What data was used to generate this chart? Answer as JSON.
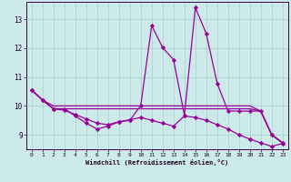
{
  "xlabel": "Windchill (Refroidissement éolien,°C)",
  "x": [
    0,
    1,
    2,
    3,
    4,
    5,
    6,
    7,
    8,
    9,
    10,
    11,
    12,
    13,
    14,
    15,
    16,
    17,
    18,
    19,
    20,
    21,
    22,
    23
  ],
  "lines": [
    [
      10.55,
      10.2,
      9.9,
      9.9,
      9.65,
      9.4,
      9.2,
      9.3,
      9.45,
      9.5,
      10.02,
      12.78,
      12.02,
      11.6,
      9.68,
      13.4,
      12.5,
      10.78,
      9.82,
      9.82,
      9.82,
      9.82,
      9.0,
      8.72
    ],
    [
      10.55,
      10.2,
      10.0,
      10.0,
      10.0,
      10.0,
      10.0,
      10.0,
      10.0,
      10.0,
      10.0,
      10.0,
      10.0,
      10.0,
      10.0,
      10.0,
      10.0,
      10.0,
      10.0,
      10.0,
      10.0,
      9.82,
      9.0,
      8.72
    ],
    [
      10.55,
      10.2,
      9.9,
      9.9,
      9.9,
      9.9,
      9.9,
      9.9,
      9.9,
      9.9,
      9.9,
      9.9,
      9.9,
      9.9,
      9.9,
      9.9,
      9.9,
      9.9,
      9.9,
      9.9,
      9.9,
      9.82,
      9.0,
      8.72
    ],
    [
      10.55,
      10.2,
      9.9,
      9.85,
      9.7,
      9.55,
      9.4,
      9.35,
      9.45,
      9.52,
      9.6,
      9.5,
      9.4,
      9.3,
      9.65,
      9.6,
      9.5,
      9.35,
      9.2,
      9.0,
      8.85,
      8.72,
      8.6,
      8.7
    ]
  ],
  "markers": [
    true,
    false,
    false,
    true
  ],
  "ylim": [
    8.5,
    13.6
  ],
  "yticks": [
    9,
    10,
    11,
    12,
    13
  ],
  "xlim": [
    -0.5,
    23.5
  ],
  "xticks": [
    0,
    1,
    2,
    3,
    4,
    5,
    6,
    7,
    8,
    9,
    10,
    11,
    12,
    13,
    14,
    15,
    16,
    17,
    18,
    19,
    20,
    21,
    22,
    23
  ],
  "line_color": "#990099",
  "bg_color": "#cceaea",
  "grid_color": "#aacccc",
  "marker": "D",
  "marker_size": 2.2,
  "linewidth": 0.9
}
